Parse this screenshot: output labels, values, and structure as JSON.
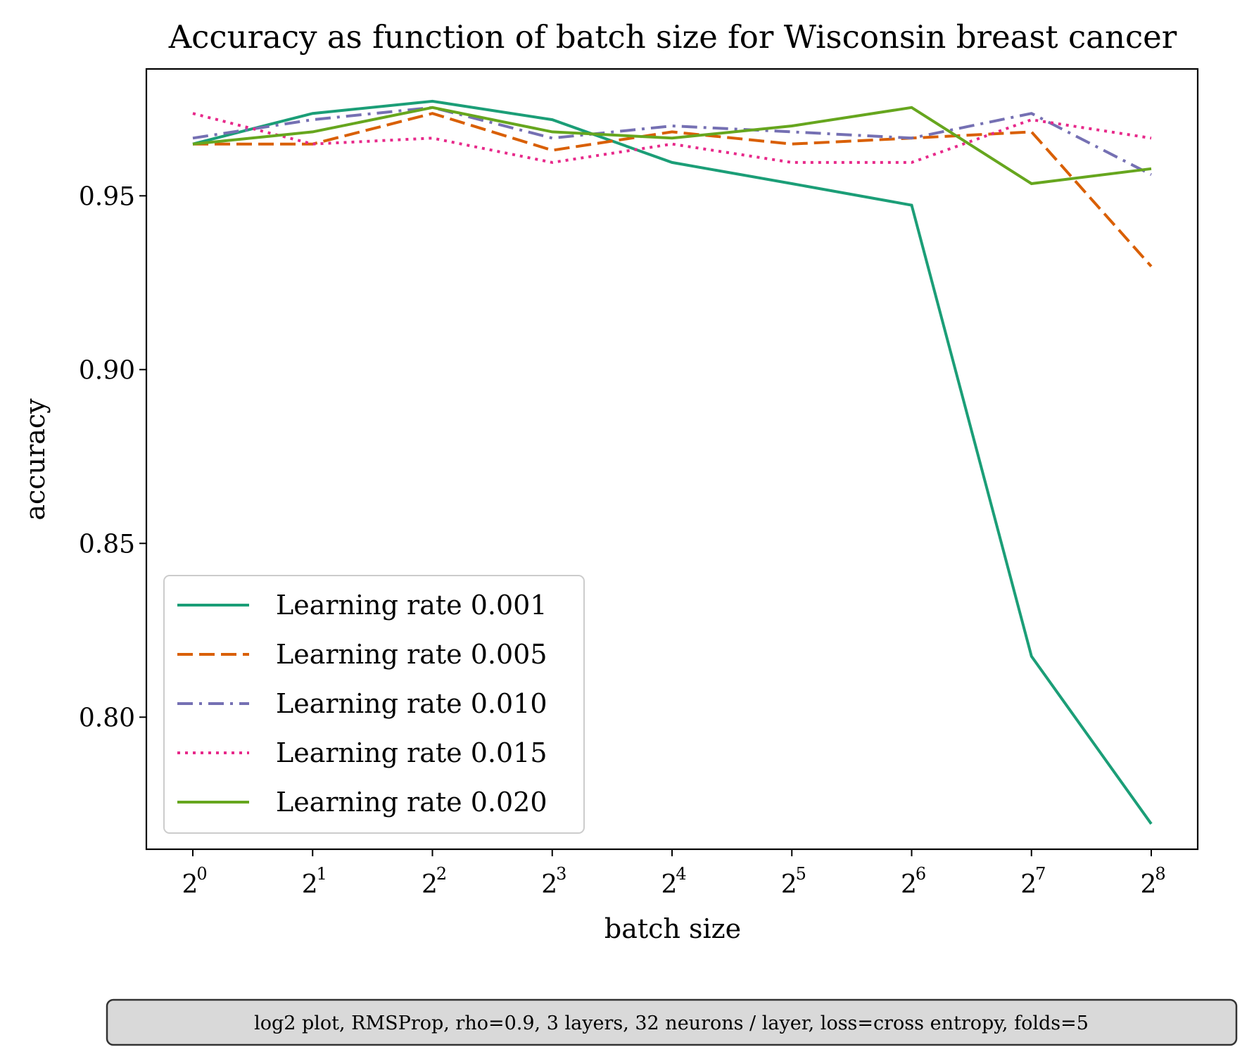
{
  "chart_data": {
    "type": "line",
    "title": "Accuracy as function of batch size for Wisconsin breast cancer",
    "xlabel": "batch size",
    "ylabel": "accuracy",
    "x_scale": "log2",
    "x": [
      1,
      2,
      4,
      8,
      16,
      32,
      64,
      128,
      256
    ],
    "x_tick_labels": [
      {
        "base": "2",
        "exp": "0"
      },
      {
        "base": "2",
        "exp": "1"
      },
      {
        "base": "2",
        "exp": "2"
      },
      {
        "base": "2",
        "exp": "3"
      },
      {
        "base": "2",
        "exp": "4"
      },
      {
        "base": "2",
        "exp": "5"
      },
      {
        "base": "2",
        "exp": "6"
      },
      {
        "base": "2",
        "exp": "7"
      },
      {
        "base": "2",
        "exp": "8"
      }
    ],
    "y_ticks": [
      "0.80",
      "0.85",
      "0.90",
      "0.95"
    ],
    "ylim": [
      0.762,
      0.9865
    ],
    "grid": false,
    "legend_position": "lower-left",
    "series": [
      {
        "name": "Learning rate 0.001",
        "color": "#1b9e77",
        "dash": "solid",
        "values": [
          0.9649,
          0.9737,
          0.9772,
          0.9719,
          0.9596,
          0.9535,
          0.9473,
          0.8175,
          0.7693
        ]
      },
      {
        "name": "Learning rate 0.005",
        "color": "#d95f02",
        "dash": "dashed",
        "values": [
          0.9649,
          0.9649,
          0.9737,
          0.9631,
          0.9684,
          0.9649,
          0.9666,
          0.9684,
          0.9297
        ]
      },
      {
        "name": "Learning rate 0.010",
        "color": "#7570b3",
        "dash": "dashdot",
        "values": [
          0.9666,
          0.9719,
          0.9754,
          0.9666,
          0.9701,
          0.9684,
          0.9666,
          0.9737,
          0.9561
        ]
      },
      {
        "name": "Learning rate 0.015",
        "color": "#e7298a",
        "dash": "dotted",
        "values": [
          0.9737,
          0.9649,
          0.9666,
          0.9596,
          0.9649,
          0.9596,
          0.9596,
          0.9719,
          0.9666
        ]
      },
      {
        "name": "Learning rate 0.020",
        "color": "#66a61e",
        "dash": "solid",
        "values": [
          0.9649,
          0.9684,
          0.9754,
          0.9684,
          0.9666,
          0.9701,
          0.9754,
          0.9535,
          0.9578
        ]
      }
    ]
  },
  "note": "log2 plot, RMSProp, rho=0.9, 3 layers, 32 neurons / layer, loss=cross entropy, folds=5"
}
